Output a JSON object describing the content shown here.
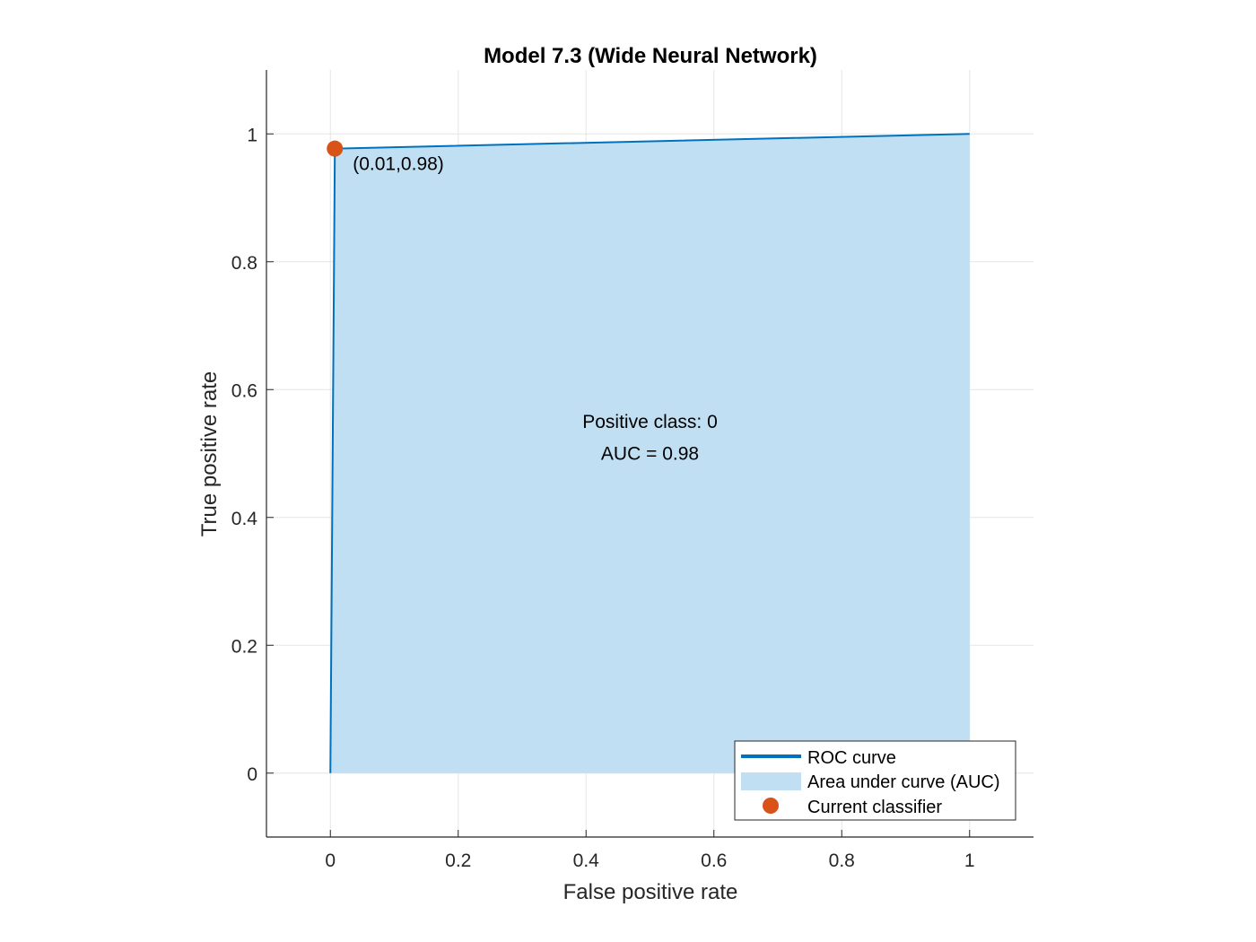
{
  "chart_data": {
    "type": "line",
    "title": "Model 7.3 (Wide Neural Network)",
    "xlabel": "False positive rate",
    "ylabel": "True positive rate",
    "xlim": [
      -0.1,
      1.1
    ],
    "ylim": [
      -0.1,
      1.1
    ],
    "grid": true,
    "xticks": [
      0,
      0.2,
      0.4,
      0.6,
      0.8,
      1
    ],
    "yticks": [
      0,
      0.2,
      0.4,
      0.6,
      0.8,
      1
    ],
    "xtick_labels": [
      "0",
      "0.2",
      "0.4",
      "0.6",
      "0.8",
      "1"
    ],
    "ytick_labels": [
      "0",
      "0.2",
      "0.4",
      "0.6",
      "0.8",
      "1"
    ],
    "series": [
      {
        "name": "ROC curve",
        "x": [
          0,
          0.007,
          1
        ],
        "y": [
          0,
          0.977,
          1
        ]
      }
    ],
    "current_classifier": {
      "x": 0.007,
      "y": 0.977,
      "label": "(0.01,0.98)"
    },
    "annotation": {
      "line1": "Positive class: 0",
      "line2": "AUC = 0.98"
    },
    "legend": {
      "position": "bottom-right",
      "entries": [
        "ROC curve",
        "Area under curve (AUC)",
        "Current classifier"
      ]
    },
    "colors": {
      "roc": "#0072BD",
      "auc_fill": "#C0DFF2",
      "marker": "#D95319",
      "grid": "#E5E5E5",
      "axis": "#262626"
    }
  }
}
